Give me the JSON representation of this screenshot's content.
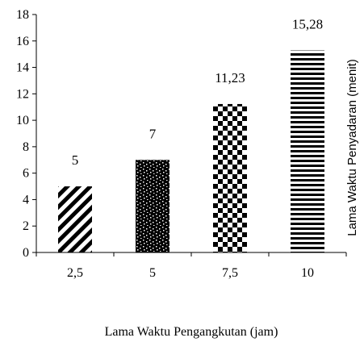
{
  "chart_data": {
    "type": "bar",
    "categories": [
      "2,5",
      "5",
      "7,5",
      "10"
    ],
    "values": [
      5,
      7,
      11.23,
      15.28
    ],
    "value_labels": [
      "5",
      "7",
      "11,23",
      "15,28"
    ],
    "bar_fill_patterns": [
      "diagonal-stripes",
      "dark-dotted",
      "checkerboard",
      "horizontal-stripes"
    ],
    "xlabel": "Lama Waktu Pengangkutan (jam)",
    "ylabel": "Lama Waktu Penyadaran (menit)",
    "ylim": [
      0,
      18
    ],
    "yticks": [
      "0",
      "2",
      "4",
      "6",
      "8",
      "10",
      "12",
      "14",
      "16",
      "18"
    ],
    "grid": false,
    "legend": "none"
  }
}
